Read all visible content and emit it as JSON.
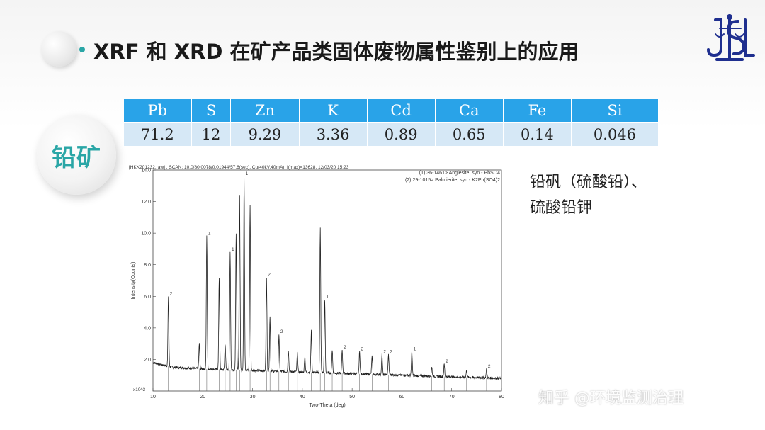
{
  "header": {
    "title": "XRF 和 XRD 在矿产品类固体废物属性鉴别上的应用"
  },
  "badge": {
    "label": "铅矿"
  },
  "composition_table": {
    "headers": [
      "Pb",
      "S",
      "Zn",
      "K",
      "Cd",
      "Ca",
      "Fe",
      "Si"
    ],
    "values": [
      "71.2",
      "12",
      "9.29",
      "3.36",
      "0.89",
      "0.65",
      "0.14",
      "0.046"
    ]
  },
  "mineral_text": {
    "line1": "铅矾（硫酸铅）、",
    "line2": "硫酸铅钾"
  },
  "watermark": "知乎 @环境监测治理",
  "colors": {
    "accent": "#2aa6a6",
    "table_header": "#29a3e8",
    "table_row": "#d6e8f6",
    "logo": "#1f2f8f"
  },
  "chart_data": {
    "type": "line",
    "scan_header": "[HKK201232.raw] , SCAN: 10.0/80.0078/0.01944/57.6(sec), Cu(40kV,40mA), I(max)=13628, 12/03/20 15:23",
    "legend": [
      "(1) 36-1461> Anglesite, syn - PbSO4",
      "(2) 29-1015> Palmierite, syn - K2Pb(SO4)2"
    ],
    "xlabel": "Two-Theta (deg)",
    "ylabel": "Intensity(Counts)",
    "y_multiplier": "x10^3",
    "xlim": [
      10,
      80
    ],
    "ylim": [
      0,
      14
    ],
    "x_ticks": [
      "10",
      "20",
      "30",
      "40",
      "50",
      "60",
      "70",
      "80"
    ],
    "y_ticks": [
      "2.0",
      "4.0",
      "6.0",
      "8.0",
      "10.0",
      "12.0",
      "14.0"
    ],
    "baseline": [
      [
        10,
        1.8
      ],
      [
        14,
        1.5
      ],
      [
        20,
        1.4
      ],
      [
        30,
        1.3
      ],
      [
        40,
        1.2
      ],
      [
        50,
        1.1
      ],
      [
        60,
        1.0
      ],
      [
        70,
        0.9
      ],
      [
        80,
        0.8
      ]
    ],
    "peaks": [
      {
        "x": 13.1,
        "y": 6.0,
        "label": "2"
      },
      {
        "x": 19.3,
        "y": 3.0,
        "label": ""
      },
      {
        "x": 20.8,
        "y": 9.8,
        "label": "1"
      },
      {
        "x": 23.3,
        "y": 7.2,
        "label": ""
      },
      {
        "x": 24.5,
        "y": 3.0,
        "label": ""
      },
      {
        "x": 25.5,
        "y": 8.8,
        "label": "1"
      },
      {
        "x": 26.7,
        "y": 9.9,
        "label": ""
      },
      {
        "x": 27.4,
        "y": 12.4,
        "label": ""
      },
      {
        "x": 28.3,
        "y": 13.6,
        "label": "1"
      },
      {
        "x": 29.5,
        "y": 11.8,
        "label": ""
      },
      {
        "x": 32.8,
        "y": 7.2,
        "label": "2"
      },
      {
        "x": 33.5,
        "y": 4.7,
        "label": ""
      },
      {
        "x": 35.3,
        "y": 3.6,
        "label": "2"
      },
      {
        "x": 37.2,
        "y": 2.6,
        "label": ""
      },
      {
        "x": 39.0,
        "y": 2.4,
        "label": ""
      },
      {
        "x": 40.5,
        "y": 2.2,
        "label": ""
      },
      {
        "x": 41.8,
        "y": 3.8,
        "label": ""
      },
      {
        "x": 43.6,
        "y": 10.4,
        "label": ""
      },
      {
        "x": 44.5,
        "y": 5.8,
        "label": "1"
      },
      {
        "x": 46.0,
        "y": 2.6,
        "label": ""
      },
      {
        "x": 48.0,
        "y": 2.6,
        "label": "2"
      },
      {
        "x": 51.5,
        "y": 2.5,
        "label": "2"
      },
      {
        "x": 54.0,
        "y": 2.2,
        "label": ""
      },
      {
        "x": 56.0,
        "y": 2.3,
        "label": "2"
      },
      {
        "x": 57.3,
        "y": 2.3,
        "label": "2"
      },
      {
        "x": 62.0,
        "y": 2.5,
        "label": "1"
      },
      {
        "x": 66.0,
        "y": 1.5,
        "label": ""
      },
      {
        "x": 68.5,
        "y": 1.7,
        "label": "2"
      },
      {
        "x": 73.0,
        "y": 1.3,
        "label": ""
      },
      {
        "x": 77.0,
        "y": 1.4,
        "label": "2"
      }
    ]
  }
}
